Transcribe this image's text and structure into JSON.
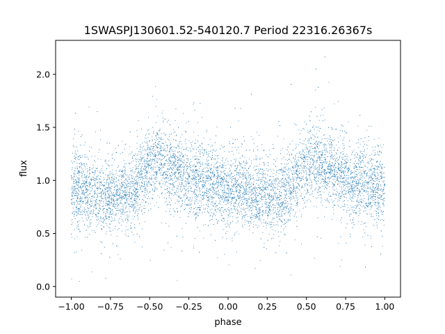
{
  "chart_data": {
    "type": "scatter",
    "title": "1SWASPJ130601.52-540120.7 Period 22316.26367s",
    "xlabel": "phase",
    "ylabel": "flux",
    "xlim": [
      -1.1,
      1.1
    ],
    "ylim": [
      -0.1,
      2.32
    ],
    "x_ticks": [
      -1.0,
      -0.75,
      -0.5,
      -0.25,
      0.0,
      0.25,
      0.5,
      0.75,
      1.0
    ],
    "x_tick_labels": [
      "−1.00",
      "−0.75",
      "−0.50",
      "−0.25",
      "0.00",
      "0.25",
      "0.50",
      "0.75",
      "1.00"
    ],
    "y_ticks": [
      0.0,
      0.5,
      1.0,
      1.5,
      2.0
    ],
    "y_tick_labels": [
      "0.0",
      "0.5",
      "1.0",
      "1.5",
      "2.0"
    ],
    "grid": false,
    "point_color": "#1f77b4",
    "series": [
      {
        "name": "",
        "x_range": [
          -1.0,
          1.0
        ],
        "profile_x": [
          -1.0,
          -0.9,
          -0.8,
          -0.7,
          -0.6,
          -0.5,
          -0.45,
          -0.4,
          -0.3,
          -0.2,
          -0.1,
          0.0,
          0.1,
          0.2,
          0.3,
          0.4,
          0.5,
          0.55,
          0.6,
          0.7,
          0.8,
          0.9,
          1.0
        ],
        "profile_y": [
          0.92,
          0.9,
          0.86,
          0.85,
          0.93,
          1.15,
          1.2,
          1.15,
          1.05,
          0.98,
          0.95,
          0.93,
          0.9,
          0.86,
          0.85,
          0.93,
          1.15,
          1.2,
          1.15,
          1.05,
          0.98,
          0.95,
          0.93
        ],
        "scatter_std": 0.17,
        "y_extent": [
          0.0,
          2.2
        ]
      }
    ]
  }
}
